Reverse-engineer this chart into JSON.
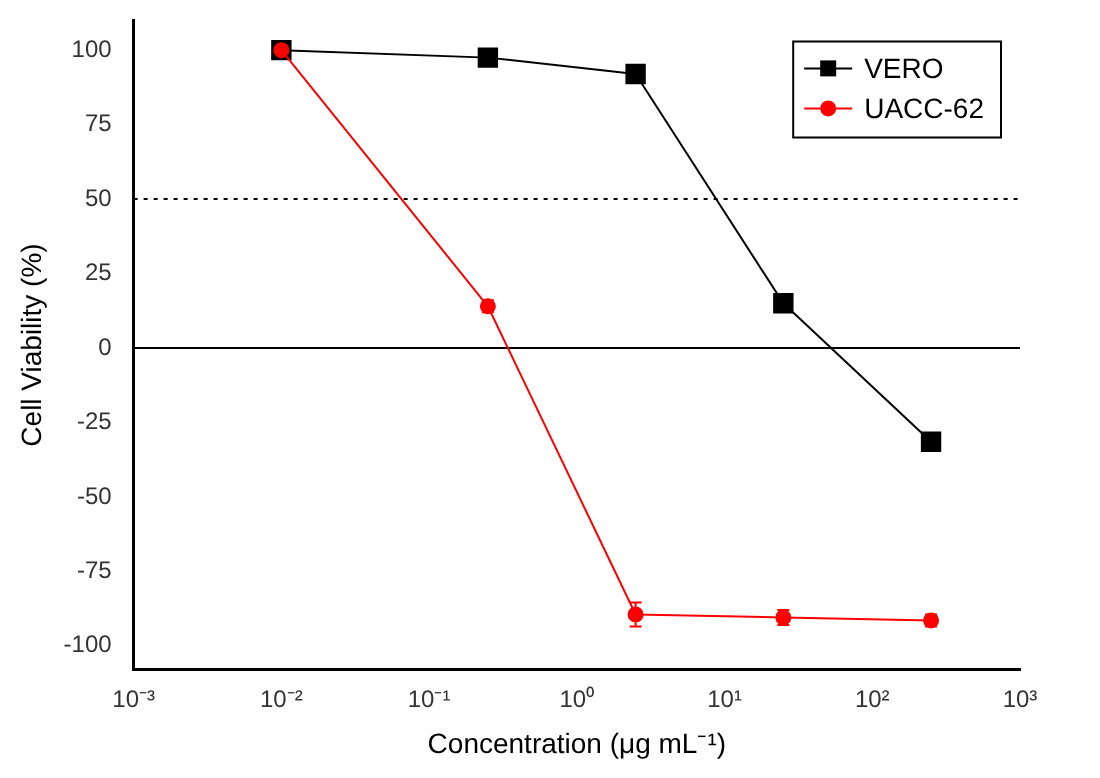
{
  "chart_data": {
    "type": "line",
    "xlabel": "Concentration (μg mL⁻¹)",
    "ylabel": "Cell Viability (%)",
    "log": "x",
    "xlim": [
      0.001,
      1000
    ],
    "xticks": [
      {
        "value": 0.001,
        "label": "10⁻³"
      },
      {
        "value": 0.01,
        "label": "10⁻²"
      },
      {
        "value": 0.1,
        "label": "10⁻¹"
      },
      {
        "value": 1,
        "label": "10⁰"
      },
      {
        "value": 10,
        "label": "10¹"
      },
      {
        "value": 100,
        "label": "10²"
      },
      {
        "value": 1000,
        "label": "10³"
      }
    ],
    "ylim": [
      -108,
      110
    ],
    "yticks": [
      -100,
      -75,
      -50,
      -25,
      0,
      25,
      50,
      75,
      100
    ],
    "x": [
      0.01,
      0.25,
      2.5,
      25,
      250
    ],
    "series": [
      {
        "name": "VERO",
        "color": "#000000",
        "marker": "square",
        "values": [
          100,
          97.5,
          92,
          15,
          -31.5
        ]
      },
      {
        "name": "UACC-62",
        "color": "#ff0000",
        "marker": "circle",
        "values": [
          100,
          14,
          -89.5,
          -90.5,
          -91.5
        ],
        "errors": [
          1,
          2,
          4,
          2.5,
          2
        ]
      }
    ],
    "ref_lines": [
      {
        "axis": "y",
        "value": 50,
        "line_style": "dotted",
        "color": "#000000"
      },
      {
        "axis": "y",
        "value": 0,
        "line_style": "solid",
        "color": "#000000"
      }
    ],
    "legend": "top right",
    "grid": false
  }
}
